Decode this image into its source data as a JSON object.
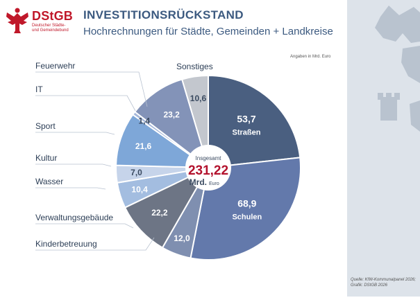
{
  "logo": {
    "text": "DStGB",
    "sub1": "Deutscher Städte-",
    "sub2": "und Gemeindebund"
  },
  "title": "INVESTITIONSRÜCKSTAND",
  "subtitle": "Hochrechnungen für Städte, Gemeinden + Landkreise",
  "unit_note": "Angaben in Mrd. Euro",
  "source": {
    "line1": "Quelle: KfW-Kommunalpanel 2026;",
    "line2": "Grafik: DStGB 2026"
  },
  "colors": {
    "title": "#3c5a80",
    "brand_red": "#c0182a",
    "total_red": "#b3122d",
    "side_background": "#dde3ea"
  },
  "center": {
    "label": "Insgesamt",
    "value": "231,22",
    "unit_bold": "Mrd.",
    "unit_small": "Euro"
  },
  "chart_data": {
    "type": "pie",
    "title": "Hochrechnungen für Städte, Gemeinden + Landkreise",
    "total": 231.22,
    "slices": [
      {
        "label": "Straßen",
        "value": 53.7,
        "value_text": "53,7",
        "color": "#4a5f80",
        "label_inside": true
      },
      {
        "label": "Schulen",
        "value": 68.9,
        "value_text": "68,9",
        "color": "#6379ab",
        "label_inside": true
      },
      {
        "label": "Kinderbetreuung",
        "value": 12.0,
        "value_text": "12,0",
        "color": "#7f8fb0",
        "label_inside": false
      },
      {
        "label": "Verwaltungsgebäude",
        "value": 22.2,
        "value_text": "22,2",
        "color": "#6d7585",
        "label_inside": false
      },
      {
        "label": "Wasser",
        "value": 10.4,
        "value_text": "10,4",
        "color": "#a3bde0",
        "label_inside": false
      },
      {
        "label": "Kultur",
        "value": 7.0,
        "value_text": "7,0",
        "color": "#c6d4ea",
        "label_inside": false
      },
      {
        "label": "Sport",
        "value": 21.6,
        "value_text": "21,6",
        "color": "#7ea7d8",
        "label_inside": false
      },
      {
        "label": "IT",
        "value": 1.4,
        "value_text": "1,4",
        "color": "#a5b7d9",
        "label_inside": false
      },
      {
        "label": "Feuerwehr",
        "value": 23.2,
        "value_text": "23,2",
        "color": "#8393b8",
        "label_inside": false
      },
      {
        "label": "Sonstiges",
        "value": 10.6,
        "value_text": "10,6",
        "color": "#c3c7ce",
        "label_inside": false
      }
    ]
  }
}
